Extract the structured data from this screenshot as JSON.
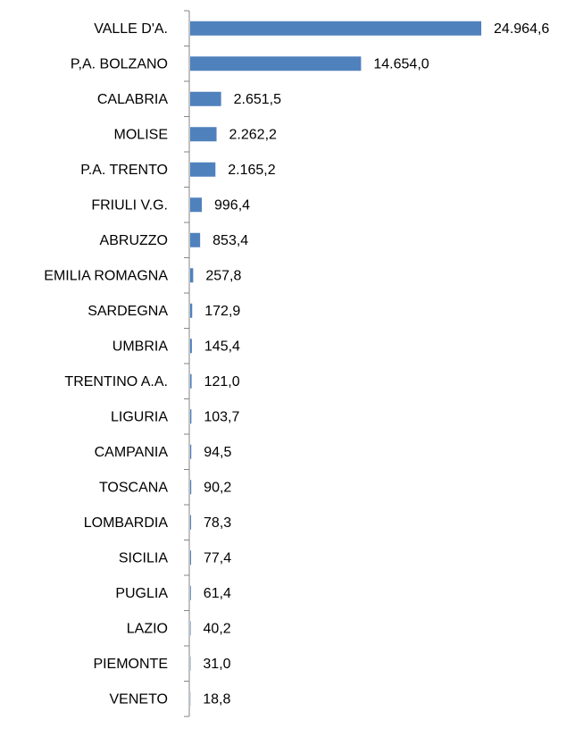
{
  "chart_data": {
    "type": "bar",
    "orientation": "horizontal",
    "color": "#4f81bd",
    "categories": [
      "VALLE D'A.",
      "P,A. BOLZANO",
      "CALABRIA",
      "MOLISE",
      "P.A. TRENTO",
      "FRIULI V.G.",
      "ABRUZZO",
      "EMILIA ROMAGNA",
      "SARDEGNA",
      "UMBRIA",
      "TRENTINO A.A.",
      "LIGURIA",
      "CAMPANIA",
      "TOSCANA",
      "LOMBARDIA",
      "SICILIA",
      "PUGLIA",
      "LAZIO",
      "PIEMONTE",
      "VENETO"
    ],
    "values": [
      24964.6,
      14654.0,
      2651.5,
      2262.2,
      2165.2,
      996.4,
      853.4,
      257.8,
      172.9,
      145.4,
      121.0,
      103.7,
      94.5,
      90.2,
      78.3,
      77.4,
      61.4,
      40.2,
      31.0,
      18.8
    ],
    "value_labels": [
      "24.964,6",
      "14.654,0",
      "2.651,5",
      "2.262,2",
      "2.165,2",
      "996,4",
      "853,4",
      "257,8",
      "172,9",
      "145,4",
      "121,0",
      "103,7",
      "94,5",
      "90,2",
      "78,3",
      "77,4",
      "61,4",
      "40,2",
      "31,0",
      "18,8"
    ]
  }
}
